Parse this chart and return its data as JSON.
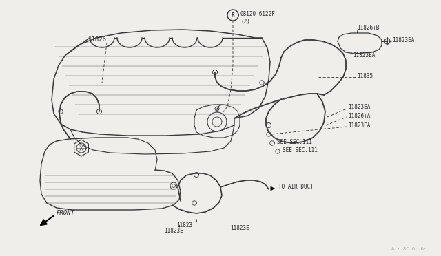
{
  "bg_color": "#f0eeea",
  "line_color": "#383838",
  "text_color": "#2a2a2a",
  "watermark": "A·· 8C 0: 6·",
  "labels": {
    "front": "FRONT",
    "bolt_circle": "B",
    "bolt_text1": "08120-6122F",
    "bolt_text2": "(2)",
    "l11826": "11826",
    "l11823EA_1": "11823EA",
    "l11826B": "11826+B",
    "l11823EA_2": "11823EA",
    "l11835": "11835",
    "l11823EA_3": "11823EA",
    "l11826A": "11826+A",
    "l11823EA_4": "11823EA",
    "seesec1": "SEE SEC.111",
    "seesec2": "SEE SEC.111",
    "to_air_duct": "TO AIR DUCT",
    "l11823": "11823",
    "l11823E_1": "11823E",
    "l11823E_2": "11823E"
  }
}
